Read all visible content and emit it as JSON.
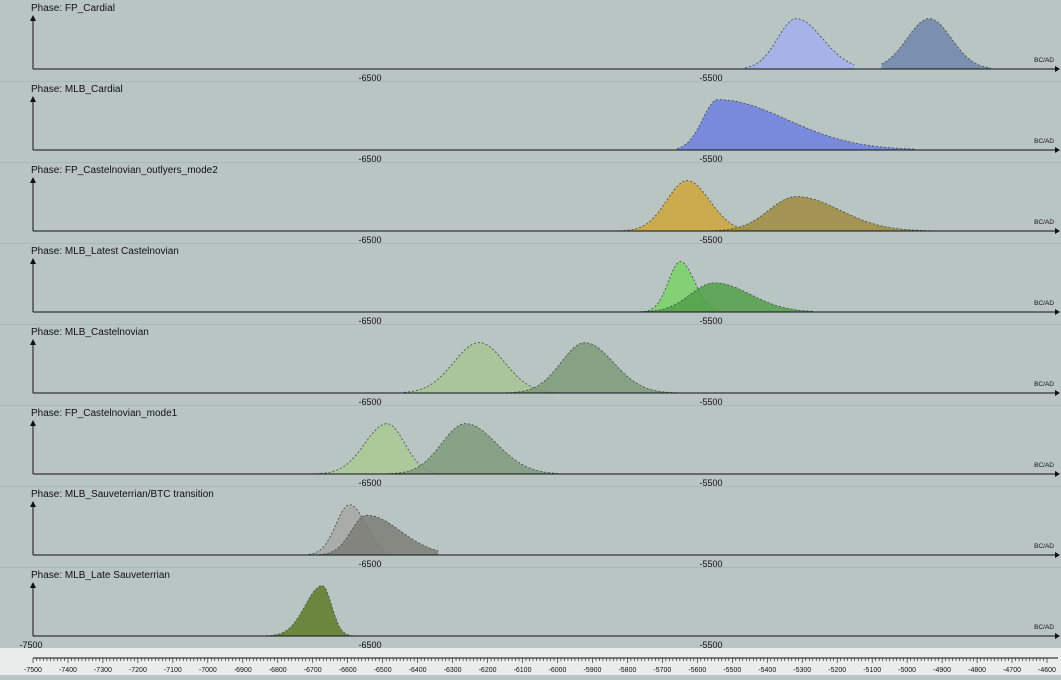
{
  "unit_label": "BC/AD",
  "colors": {
    "cardial_fp": "#a3aef0",
    "cardial_fp2": "#6f86aa",
    "cardial_mlb": "#6d7fe0",
    "castel_gold": "#cfa63a",
    "castel_olive": "#a08b40",
    "latest_green1": "#78d467",
    "latest_green2": "#52a04a",
    "castel_lightgreen": "#a8c493",
    "castel_darkgreen": "#7d9a78",
    "mode1_light": "#a9c993",
    "mode1_dark": "#7f9b7e",
    "sauv_light": "#a7a7a4",
    "sauv_dark": "#7c7d77",
    "late_sauv": "#5f7a27"
  },
  "chart_data": {
    "type": "area",
    "xlabel": "BC/AD",
    "xlim": [
      -7500,
      -4600
    ],
    "bottom_axis_ticks": [
      -7500,
      -7400,
      -7300,
      -7200,
      -7100,
      -7000,
      -6900,
      -6800,
      -6700,
      -6600,
      -6500,
      -6400,
      -6300,
      -6200,
      -6100,
      -6000,
      -5900,
      -5800,
      -5700,
      -5600,
      -5500,
      -5400,
      -5300,
      -5200,
      -5100,
      -5000,
      -4900,
      -4800,
      -4700,
      -4600
    ],
    "panels": [
      {
        "title": "Phase: FP_Cardial",
        "tick_labels": [
          "-6500",
          "-5500"
        ],
        "series": [
          {
            "color_key": "cardial_fp",
            "peak": -5250,
            "sd": 55,
            "skew": 1.4,
            "height": 0.95,
            "from": -5400,
            "to": -5080
          },
          {
            "color_key": "cardial_fp2",
            "peak": -4860,
            "sd": 65,
            "skew": 1.0,
            "height": 0.95,
            "from": -5000,
            "to": -4680
          }
        ]
      },
      {
        "title": "Phase: MLB_Cardial",
        "tick_labels": [
          "-6500",
          "-5500"
        ],
        "series": [
          {
            "color_key": "cardial_mlb",
            "peak": -5480,
            "sd": 45,
            "skew": 4.5,
            "height": 0.95,
            "from": -5600,
            "to": -4900
          }
        ]
      },
      {
        "title": "Phase: FP_Castelnovian_outlyers_mode2",
        "tick_labels": [
          "-6500",
          "-5500"
        ],
        "series": [
          {
            "color_key": "castel_gold",
            "peak": -5570,
            "sd": 60,
            "skew": 1.1,
            "height": 0.95,
            "from": -5780,
            "to": -5350
          },
          {
            "color_key": "castel_olive",
            "peak": -5250,
            "sd": 80,
            "skew": 1.6,
            "height": 0.65,
            "from": -5500,
            "to": -4850
          }
        ]
      },
      {
        "title": "Phase: MLB_Latest Castelnovian",
        "tick_labels": [
          "-6500",
          "-5500"
        ],
        "series": [
          {
            "color_key": "latest_green1",
            "peak": -5590,
            "sd": 35,
            "skew": 1.2,
            "height": 0.95,
            "from": -5720,
            "to": -5480
          },
          {
            "color_key": "latest_green2",
            "peak": -5490,
            "sd": 70,
            "skew": 1.5,
            "height": 0.55,
            "from": -5700,
            "to": -5200
          }
        ]
      },
      {
        "title": "Phase: MLB_Castelnovian",
        "tick_labels": [
          "-6500",
          "-5500"
        ],
        "series": [
          {
            "color_key": "castel_lightgreen",
            "peak": -6180,
            "sd": 75,
            "skew": 1.0,
            "height": 0.95,
            "from": -6400,
            "to": -5950
          },
          {
            "color_key": "castel_darkgreen",
            "peak": -5870,
            "sd": 70,
            "skew": 1.2,
            "height": 0.95,
            "from": -6100,
            "to": -5600
          }
        ]
      },
      {
        "title": "Phase: FP_Castelnovian_mode1",
        "tick_labels": [
          "-6500",
          "-5500"
        ],
        "series": [
          {
            "color_key": "mode1_light",
            "peak": -6450,
            "sd": 65,
            "skew": 0.8,
            "height": 0.95,
            "from": -6680,
            "to": -6300
          },
          {
            "color_key": "mode1_dark",
            "peak": -6220,
            "sd": 70,
            "skew": 1.3,
            "height": 0.95,
            "from": -6450,
            "to": -5950
          }
        ]
      },
      {
        "title": "Phase: MLB_Sauveterrian/BTC transition",
        "tick_labels": [
          "-6500",
          "-5500"
        ],
        "series": [
          {
            "color_key": "sauv_light",
            "peak": -6560,
            "sd": 40,
            "skew": 1.2,
            "height": 0.95,
            "from": -6680,
            "to": -6450
          },
          {
            "color_key": "sauv_dark",
            "peak": -6510,
            "sd": 45,
            "skew": 2.2,
            "height": 0.75,
            "from": -6660,
            "to": -6300
          }
        ]
      },
      {
        "title": "Phase: MLB_Late Sauveterrian",
        "tick_labels": [
          "-7500",
          "-6500",
          "-5500"
        ],
        "series": [
          {
            "color_key": "late_sauv",
            "peak": -6640,
            "sd": 50,
            "skew": 0.55,
            "height": 0.95,
            "from": -6980,
            "to": -6500
          }
        ]
      }
    ]
  }
}
